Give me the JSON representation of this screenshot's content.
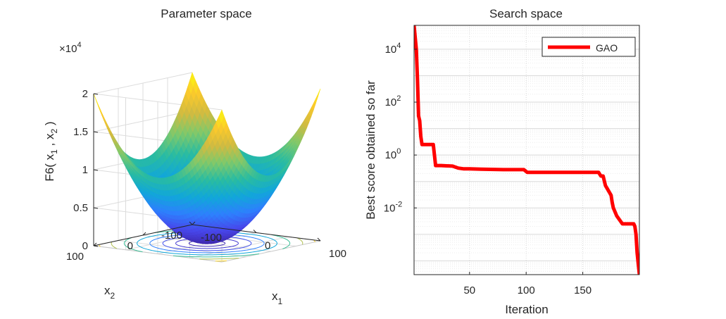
{
  "chart_data": [
    {
      "type": "surface",
      "title": "Parameter space",
      "function_label": "F6",
      "zlabel_parts": [
        "F6( x",
        "1",
        " , x",
        "2",
        " )"
      ],
      "x_label_base": "x",
      "x_label_sub": "1",
      "y_label_base": "x",
      "y_label_sub": "2",
      "x_range": [
        -100,
        100
      ],
      "y_range": [
        -100,
        100
      ],
      "z_range": [
        0,
        20000
      ],
      "x_ticks": [
        "-100",
        "0",
        "100"
      ],
      "y_ticks": [
        "-100",
        "0",
        "100"
      ],
      "z_ticks": [
        "0",
        "0.5",
        "1",
        "1.5",
        "2"
      ],
      "z_exponent_prefix": "×10",
      "z_exponent_power": "4",
      "colormap": "parula",
      "contour_levels": [
        500,
        1500,
        3000,
        5000,
        7500,
        10500,
        14000,
        18000
      ]
    },
    {
      "type": "line",
      "title": "Search space",
      "xlabel": "Iteration",
      "ylabel": "Best score obtained so far",
      "yscale": "log",
      "xlim": [
        1,
        200
      ],
      "ylim": [
        3e-05,
        80000
      ],
      "x_ticks": [
        50,
        100,
        150
      ],
      "y_tick_labels": [
        {
          "value": 10000,
          "base": "10",
          "exp": "4"
        },
        {
          "value": 100,
          "base": "10",
          "exp": "2"
        },
        {
          "value": 1,
          "base": "10",
          "exp": "0"
        },
        {
          "value": 0.01,
          "base": "10",
          "exp": "-2"
        }
      ],
      "grid": true,
      "legend_position": "top-right",
      "series": [
        {
          "name": "GAO",
          "color": "#ff0000",
          "x": [
            1,
            3,
            4,
            5,
            6,
            7,
            8,
            9,
            18,
            20,
            25,
            35,
            40,
            45,
            50,
            60,
            80,
            98,
            101,
            150,
            164,
            166,
            168,
            170,
            172,
            175,
            176,
            177,
            178,
            180,
            185,
            190,
            195,
            196,
            197,
            198,
            200
          ],
          "values": [
            80000,
            10000,
            800,
            30,
            20,
            5,
            2.5,
            2.5,
            2.5,
            0.4,
            0.4,
            0.38,
            0.32,
            0.3,
            0.3,
            0.29,
            0.28,
            0.28,
            0.22,
            0.22,
            0.22,
            0.16,
            0.16,
            0.07,
            0.05,
            0.03,
            0.016,
            0.01,
            0.008,
            0.005,
            0.0025,
            0.0025,
            0.0025,
            0.002,
            0.001,
            0.0002,
            3e-05
          ]
        }
      ]
    }
  ]
}
